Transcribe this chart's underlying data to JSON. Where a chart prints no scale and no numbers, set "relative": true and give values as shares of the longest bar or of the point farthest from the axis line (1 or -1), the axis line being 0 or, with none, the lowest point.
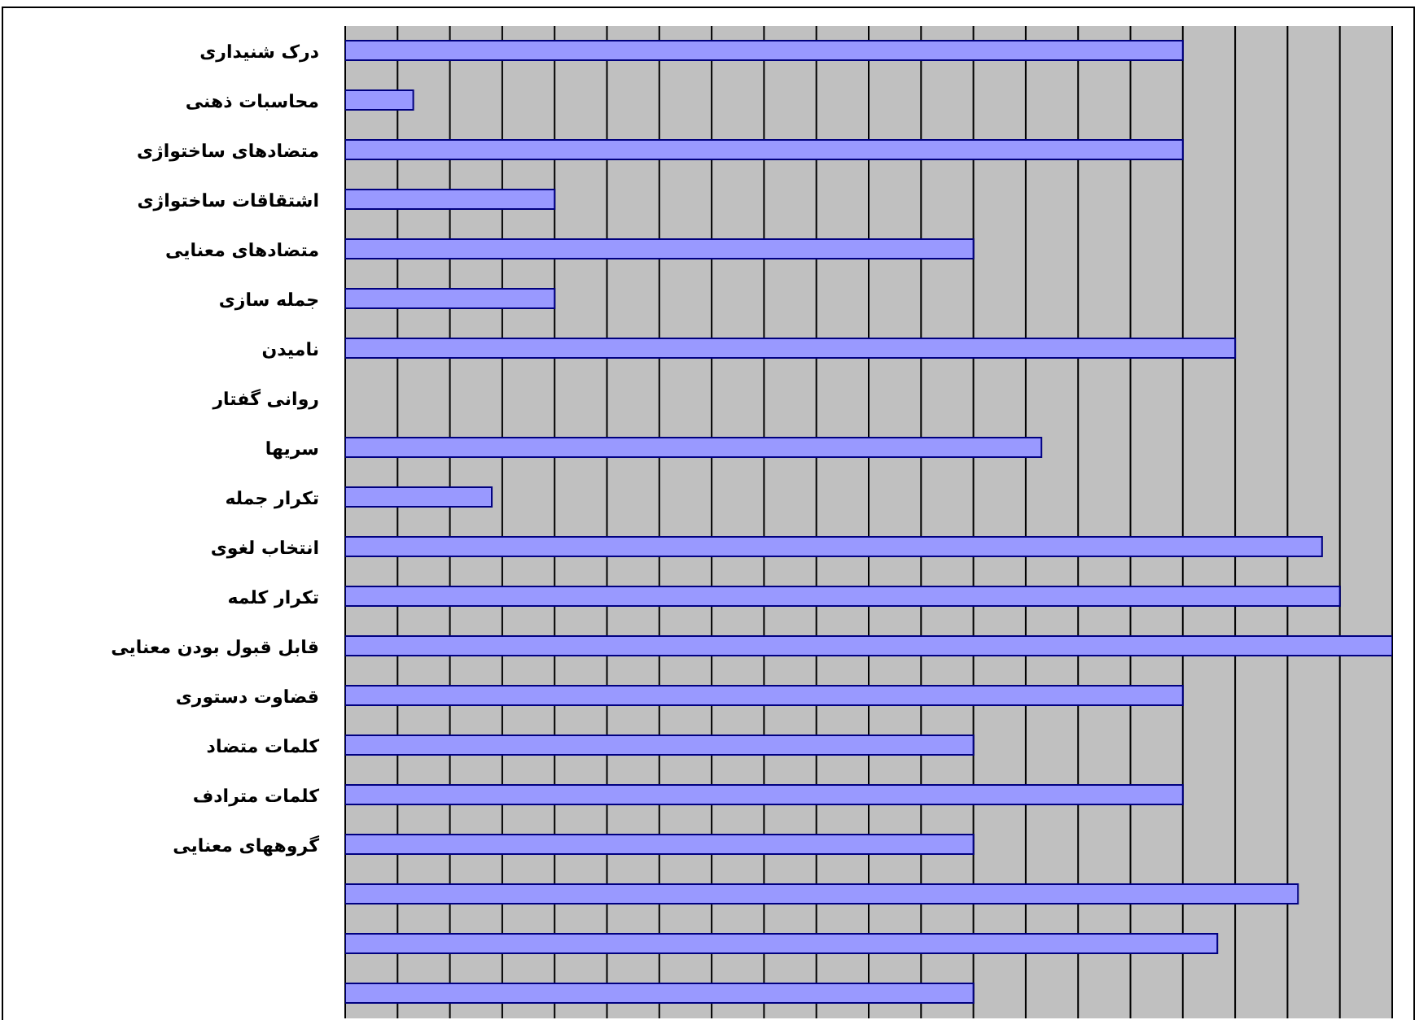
{
  "chart_data": {
    "type": "bar",
    "orientation": "horizontal",
    "relative": true,
    "grid": "x",
    "categories": [
      "درک شنیداری",
      "محاسبات ذهنی",
      "متضادهای ساختواژی",
      "اشتقاقات ساختواژی",
      "متضادهای معنایی",
      "جمله سازی",
      "نامیدن",
      "روانی گفتار",
      "سریها",
      "تکرار جمله",
      "انتخاب لغوی",
      "تکرار کلمه",
      "قابل قبول بودن معنایی",
      "قضاوت دستوری",
      "کلمات متضاد",
      "کلمات مترادف",
      "گروههای معنایی",
      null,
      null,
      null
    ],
    "series": [
      {
        "color": "#9999ff",
        "values": [
          0.8,
          0.065,
          0.8,
          0.2,
          0.6,
          0.2,
          0.85,
          0,
          0.665,
          0.14,
          0.933,
          0.95,
          1,
          0.8,
          0.6,
          0.8,
          0.6,
          0.91,
          0.833,
          0.6
        ]
      }
    ]
  }
}
